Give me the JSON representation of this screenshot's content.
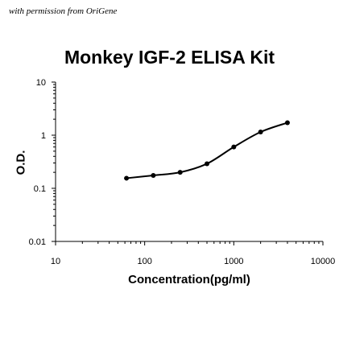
{
  "watermark": "with permission from OriGene",
  "chart_data": {
    "type": "scatter",
    "title": "Monkey IGF-2 ELISA Kit",
    "xlabel": "Concentration(pg/ml)",
    "ylabel": "O.D.",
    "x_scale": "log",
    "y_scale": "log",
    "xlim": [
      10,
      10000
    ],
    "ylim": [
      0.01,
      10
    ],
    "x_ticks": [
      "10",
      "100",
      "1000",
      "10000"
    ],
    "y_ticks": [
      "10",
      "1",
      "0.1",
      "0.01"
    ],
    "grid": false,
    "legend": "none",
    "series": [
      {
        "x": [
          62.5,
          125,
          250,
          500,
          1000,
          2000,
          4000
        ],
        "y": [
          0.155,
          0.175,
          0.2,
          0.29,
          0.6,
          1.15,
          1.72
        ]
      }
    ],
    "colors": {
      "marker": "#000000",
      "line": "#000000",
      "axis": "#000000"
    }
  }
}
